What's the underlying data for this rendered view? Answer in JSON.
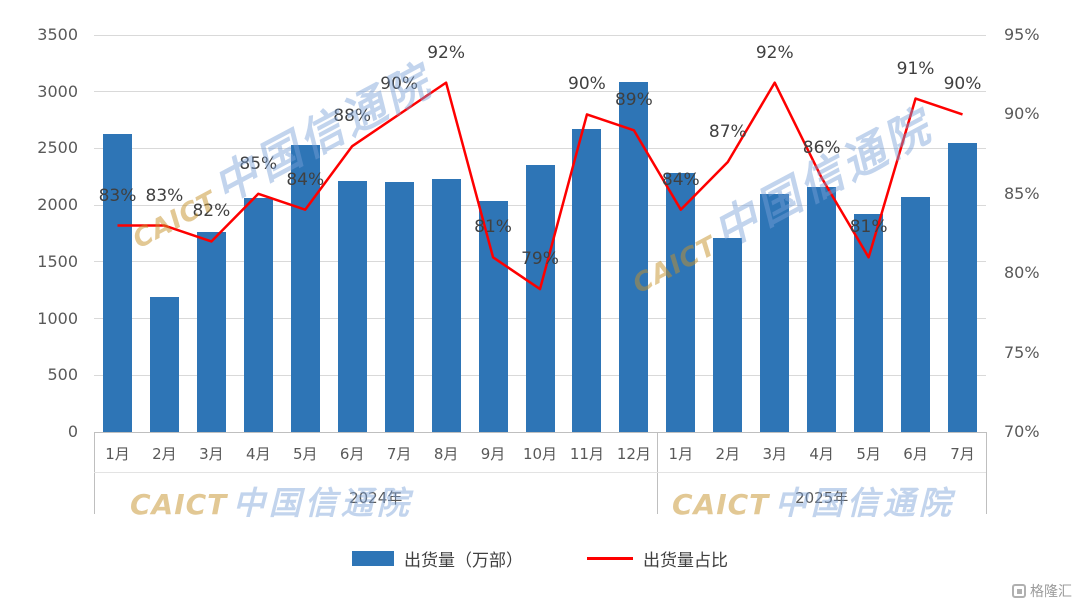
{
  "chart_data": {
    "type": "combo",
    "categories": [
      "1月",
      "2月",
      "3月",
      "4月",
      "5月",
      "6月",
      "7月",
      "8月",
      "9月",
      "10月",
      "11月",
      "12月",
      "1月",
      "2月",
      "3月",
      "4月",
      "5月",
      "6月",
      "7月"
    ],
    "groups": [
      {
        "label": "2024年",
        "span": 12
      },
      {
        "label": "2025年",
        "span": 7
      }
    ],
    "series": [
      {
        "name": "出货量（万部）",
        "type": "bar",
        "axis": "left",
        "color": "#2e75b6",
        "values": [
          2630,
          1190,
          1760,
          2060,
          2530,
          2210,
          2200,
          2230,
          2040,
          2350,
          2670,
          3090,
          2280,
          1710,
          2100,
          2160,
          1920,
          2070,
          2550
        ]
      },
      {
        "name": "出货量占比",
        "type": "line",
        "axis": "right",
        "color": "#fe0000",
        "values": [
          83,
          83,
          82,
          85,
          84,
          88,
          90,
          92,
          81,
          79,
          90,
          89,
          84,
          87,
          92,
          86,
          81,
          91,
          90
        ]
      }
    ],
    "left_axis": {
      "min": 0,
      "max": 3500,
      "step": 500,
      "suffix": ""
    },
    "right_axis": {
      "min": 70,
      "max": 95,
      "step": 5,
      "suffix": "%"
    },
    "grid": true,
    "legend_position": "bottom",
    "data_labels": "line-series-only"
  },
  "watermark": {
    "brand": "CAICT",
    "cn": "中国信通院"
  },
  "logo": {
    "text": "格隆汇"
  }
}
